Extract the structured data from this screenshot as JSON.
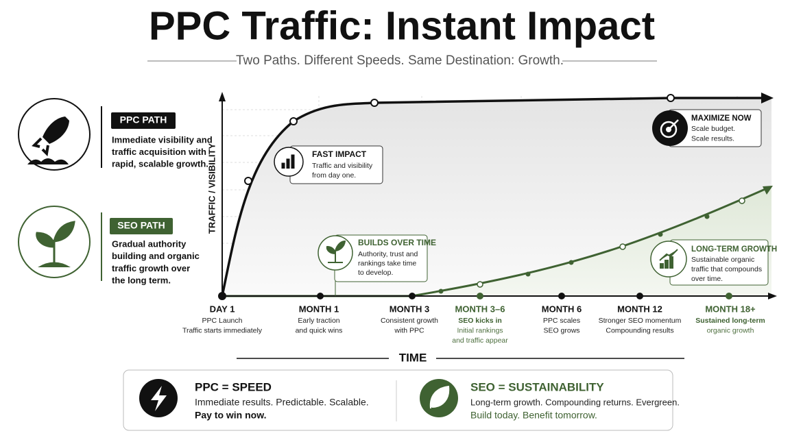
{
  "header": {
    "title": "PPC Traffic: Instant Impact",
    "subtitle": "Two Paths. Different Speeds. Same Destination: Growth."
  },
  "paths": [
    {
      "label": "PPC PATH",
      "lines": [
        "Immediate visibility and",
        "traffic acquisition with",
        "rapid, scalable growth."
      ]
    },
    {
      "label": "SEO PATH",
      "lines": [
        "Gradual authority",
        "building and organic",
        "traffic growth over",
        "the long term."
      ]
    }
  ],
  "axis": {
    "y_label": "TRAFFIC / VISIBILITY",
    "x_label": "TIME"
  },
  "milestones": [
    {
      "label": "DAY 1",
      "lines": [
        "PPC Launch",
        "Traffic starts immediately"
      ]
    },
    {
      "label": "MONTH 1",
      "lines": [
        "Early traction",
        "and quick wins"
      ]
    },
    {
      "label": "MONTH 3",
      "lines": [
        "Consistent growth",
        "with PPC"
      ]
    },
    {
      "label": "MONTH 3–6",
      "lines": [
        "SEO kicks in",
        "Initial rankings",
        "and traffic appear"
      ]
    },
    {
      "label": "MONTH 6",
      "lines": [
        "PPC scales",
        "SEO grows"
      ]
    },
    {
      "label": "MONTH 12",
      "lines": [
        "Stronger SEO momentum",
        "Compounding results"
      ]
    },
    {
      "label": "MONTH 18+",
      "lines": [
        "Sustained long-term",
        "organic growth"
      ]
    }
  ],
  "callouts": [
    {
      "title": "FAST IMPACT",
      "lines": [
        "Traffic and visibility",
        "from day one."
      ]
    },
    {
      "title": "MAXIMIZE NOW",
      "lines": [
        "Scale budget.",
        "Scale results."
      ]
    },
    {
      "title": "BUILDS OVER TIME",
      "lines": [
        "Authority, trust and",
        "rankings take time",
        "to develop."
      ]
    },
    {
      "title": "LONG-TERM GROWTH",
      "lines": [
        "Sustainable organic",
        "traffic that compounds",
        "over time."
      ]
    }
  ],
  "footer": {
    "ppc": {
      "title": "PPC = SPEED",
      "line1": "Immediate results. Predictable. Scalable.",
      "line2": "Pay to win now."
    },
    "seo": {
      "title": "SEO = SUSTAINABILITY",
      "line1": "Long-term growth. Compounding returns. Evergreen.",
      "line2": "Build today. Benefit tomorrow."
    }
  }
}
